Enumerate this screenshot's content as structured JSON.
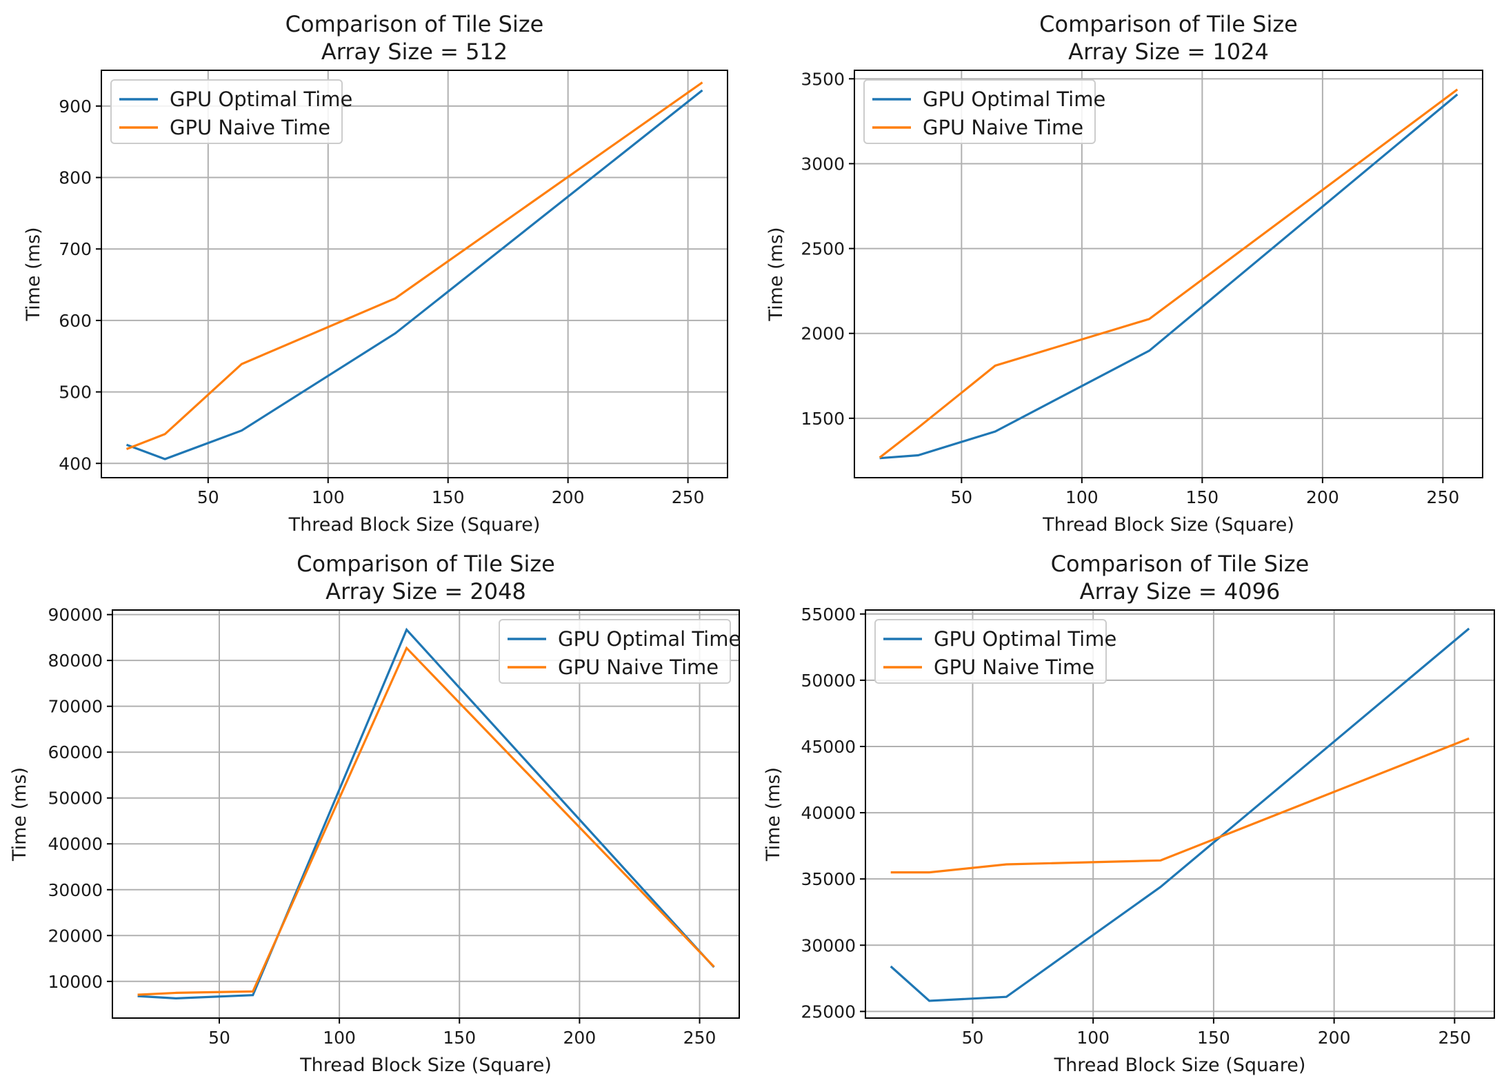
{
  "colors": {
    "optimal": "#1f77b4",
    "naive": "#ff7f0e"
  },
  "chart_data": [
    {
      "type": "line",
      "title": "Comparison of Tile Size",
      "subtitle": "Array Size = 512",
      "xlabel": "Thread Block Size (Square)",
      "ylabel": "Time (ms)",
      "x": [
        16,
        32,
        64,
        128,
        256
      ],
      "xlim": [
        5.5,
        266.5
      ],
      "ylim": [
        380,
        950
      ],
      "xticks": [
        50,
        100,
        150,
        200,
        250
      ],
      "yticks": [
        400,
        500,
        600,
        700,
        800,
        900
      ],
      "grid": true,
      "legend_position": "top-left",
      "series": [
        {
          "name": "GPU Optimal Time",
          "color": "#1f77b4",
          "values": [
            426,
            406,
            446,
            582,
            922
          ]
        },
        {
          "name": "GPU Naive Time",
          "color": "#ff7f0e",
          "values": [
            420,
            441,
            539,
            631,
            933
          ]
        }
      ]
    },
    {
      "type": "line",
      "title": "Comparison of Tile Size",
      "subtitle": "Array Size = 1024",
      "xlabel": "Thread Block Size (Square)",
      "ylabel": "Time (ms)",
      "x": [
        16,
        32,
        64,
        128,
        256
      ],
      "xlim": [
        5.5,
        266.5
      ],
      "ylim": [
        1150,
        3550
      ],
      "xticks": [
        50,
        100,
        150,
        200,
        250
      ],
      "yticks": [
        1500,
        2000,
        2500,
        3000,
        3500
      ],
      "grid": true,
      "legend_position": "top-left",
      "series": [
        {
          "name": "GPU Optimal Time",
          "color": "#1f77b4",
          "values": [
            1265,
            1282,
            1422,
            1898,
            3408
          ]
        },
        {
          "name": "GPU Naive Time",
          "color": "#ff7f0e",
          "values": [
            1268,
            1445,
            1810,
            2085,
            3437
          ]
        }
      ]
    },
    {
      "type": "line",
      "title": "Comparison of Tile Size",
      "subtitle": "Array Size = 2048",
      "xlabel": "Thread Block Size (Square)",
      "ylabel": "Time (ms)",
      "x": [
        16,
        32,
        64,
        128,
        256
      ],
      "xlim": [
        5.5,
        266.5
      ],
      "ylim": [
        2000,
        91000
      ],
      "xticks": [
        50,
        100,
        150,
        200,
        250
      ],
      "yticks": [
        10000,
        20000,
        30000,
        40000,
        50000,
        60000,
        70000,
        80000,
        90000
      ],
      "grid": true,
      "legend_position": "top-right",
      "series": [
        {
          "name": "GPU Optimal Time",
          "color": "#1f77b4",
          "values": [
            6800,
            6300,
            7000,
            86700,
            13100
          ]
        },
        {
          "name": "GPU Naive Time",
          "color": "#ff7f0e",
          "values": [
            7100,
            7500,
            7800,
            82700,
            13200
          ]
        }
      ]
    },
    {
      "type": "line",
      "title": "Comparison of Tile Size",
      "subtitle": "Array Size = 4096",
      "xlabel": "Thread Block Size (Square)",
      "ylabel": "Time (ms)",
      "x": [
        16,
        32,
        64,
        128,
        256
      ],
      "xlim": [
        5.5,
        266.5
      ],
      "ylim": [
        24500,
        55300
      ],
      "xticks": [
        50,
        100,
        150,
        200,
        250
      ],
      "yticks": [
        25000,
        30000,
        35000,
        40000,
        45000,
        50000,
        55000
      ],
      "grid": true,
      "legend_position": "top-left",
      "series": [
        {
          "name": "GPU Optimal Time",
          "color": "#1f77b4",
          "values": [
            28400,
            25800,
            26100,
            34400,
            53900
          ]
        },
        {
          "name": "GPU Naive Time",
          "color": "#ff7f0e",
          "values": [
            35500,
            35500,
            36100,
            36400,
            45600
          ]
        }
      ]
    }
  ]
}
